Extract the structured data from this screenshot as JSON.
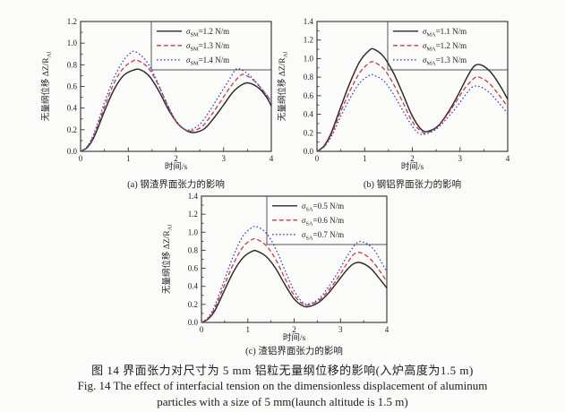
{
  "figure": {
    "caption_cn": "图 14  界面张力对尺寸为 5 mm 铝粒无量纲位移的影响(入炉高度为1.5 m)",
    "caption_en_1": "Fig. 14  The effect of interfacial tension on the dimensionless displacement of aluminum",
    "caption_en_2": "particles with a size of 5 mm(launch altitude is 1.5 m)"
  },
  "style": {
    "background": "#fbfbf9",
    "axis_color": "#2e2e2e",
    "text_color": "#1f1f1f",
    "series_colors": [
      "#2a2a2a",
      "#c43b4e",
      "#3c49c0"
    ],
    "line_styles": [
      "solid",
      "dashed",
      "dotted"
    ]
  },
  "chart_data": [
    {
      "type": "line",
      "subcaption": "(a) 钢渣界面张力的影响",
      "xlabel": "时间/s",
      "ylabel": "无量纲位移 ΔZ/R",
      "ylabel_sub": "Al",
      "xlim": [
        0,
        4
      ],
      "ylim": [
        0,
        1.2
      ],
      "xticks": [
        "0",
        "1",
        "2",
        "3",
        "4"
      ],
      "yticks": [
        "0.0",
        "0.2",
        "0.4",
        "0.6",
        "0.8",
        "1.0",
        "1.2"
      ],
      "legend_position": "top-right",
      "grid": false,
      "series": [
        {
          "name": "σSM=1.2 N/m",
          "sigma_sub": "SM",
          "value_text": "=1.2 N/m",
          "line_style": "solid",
          "points": [
            [
              0,
              0
            ],
            [
              0.15,
              0.04
            ],
            [
              0.3,
              0.15
            ],
            [
              0.5,
              0.37
            ],
            [
              0.7,
              0.57
            ],
            [
              0.9,
              0.7
            ],
            [
              1.1,
              0.75
            ],
            [
              1.25,
              0.755
            ],
            [
              1.45,
              0.69
            ],
            [
              1.65,
              0.55
            ],
            [
              1.85,
              0.38
            ],
            [
              2.05,
              0.25
            ],
            [
              2.25,
              0.185
            ],
            [
              2.4,
              0.175
            ],
            [
              2.6,
              0.21
            ],
            [
              2.8,
              0.31
            ],
            [
              3.0,
              0.43
            ],
            [
              3.2,
              0.55
            ],
            [
              3.4,
              0.62
            ],
            [
              3.55,
              0.63
            ],
            [
              3.75,
              0.58
            ],
            [
              3.9,
              0.5
            ],
            [
              4,
              0.42
            ]
          ]
        },
        {
          "name": "σSM=1.3 N/m",
          "sigma_sub": "SM",
          "value_text": "=1.3 N/m",
          "line_style": "dashed",
          "points": [
            [
              0,
              0
            ],
            [
              0.15,
              0.05
            ],
            [
              0.3,
              0.17
            ],
            [
              0.5,
              0.41
            ],
            [
              0.7,
              0.63
            ],
            [
              0.9,
              0.77
            ],
            [
              1.1,
              0.835
            ],
            [
              1.2,
              0.84
            ],
            [
              1.4,
              0.78
            ],
            [
              1.6,
              0.64
            ],
            [
              1.8,
              0.45
            ],
            [
              2.0,
              0.28
            ],
            [
              2.2,
              0.2
            ],
            [
              2.35,
              0.19
            ],
            [
              2.55,
              0.23
            ],
            [
              2.75,
              0.34
            ],
            [
              2.95,
              0.47
            ],
            [
              3.15,
              0.6
            ],
            [
              3.35,
              0.7
            ],
            [
              3.45,
              0.705
            ],
            [
              3.65,
              0.65
            ],
            [
              3.85,
              0.55
            ],
            [
              4,
              0.46
            ]
          ]
        },
        {
          "name": "σSM=1.4 N/m",
          "sigma_sub": "SM",
          "value_text": "=1.4 N/m",
          "line_style": "dotted",
          "points": [
            [
              0,
              0
            ],
            [
              0.15,
              0.05
            ],
            [
              0.3,
              0.19
            ],
            [
              0.5,
              0.45
            ],
            [
              0.7,
              0.68
            ],
            [
              0.9,
              0.84
            ],
            [
              1.05,
              0.91
            ],
            [
              1.15,
              0.92
            ],
            [
              1.35,
              0.85
            ],
            [
              1.55,
              0.7
            ],
            [
              1.75,
              0.5
            ],
            [
              1.95,
              0.32
            ],
            [
              2.15,
              0.21
            ],
            [
              2.3,
              0.2
            ],
            [
              2.5,
              0.25
            ],
            [
              2.7,
              0.37
            ],
            [
              2.9,
              0.51
            ],
            [
              3.1,
              0.65
            ],
            [
              3.25,
              0.755
            ],
            [
              3.35,
              0.76
            ],
            [
              3.55,
              0.7
            ],
            [
              3.75,
              0.6
            ],
            [
              3.9,
              0.52
            ],
            [
              4,
              0.46
            ]
          ]
        }
      ]
    },
    {
      "type": "line",
      "subcaption": "(b) 钢铝界面张力的影响",
      "xlabel": "时间/s",
      "ylabel": "无量纲位移 ΔZ/R",
      "ylabel_sub": "Al",
      "xlim": [
        0,
        4
      ],
      "ylim": [
        0,
        1.4
      ],
      "xticks": [
        "0",
        "1",
        "2",
        "3",
        "4"
      ],
      "yticks": [
        "0.0",
        "0.2",
        "0.4",
        "0.6",
        "0.8",
        "1.0",
        "1.2",
        "1.4"
      ],
      "legend_position": "top-right",
      "grid": false,
      "series": [
        {
          "name": "σMA=1.1 N/m",
          "sigma_sub": "MA",
          "value_text": "=1.1 N/m",
          "line_style": "solid",
          "points": [
            [
              0,
              0
            ],
            [
              0.15,
              0.06
            ],
            [
              0.3,
              0.2
            ],
            [
              0.5,
              0.48
            ],
            [
              0.7,
              0.75
            ],
            [
              0.9,
              0.97
            ],
            [
              1.1,
              1.09
            ],
            [
              1.2,
              1.1
            ],
            [
              1.4,
              1.02
            ],
            [
              1.6,
              0.85
            ],
            [
              1.8,
              0.62
            ],
            [
              2.0,
              0.38
            ],
            [
              2.2,
              0.23
            ],
            [
              2.35,
              0.22
            ],
            [
              2.55,
              0.28
            ],
            [
              2.75,
              0.42
            ],
            [
              2.95,
              0.6
            ],
            [
              3.15,
              0.8
            ],
            [
              3.3,
              0.92
            ],
            [
              3.45,
              0.93
            ],
            [
              3.65,
              0.85
            ],
            [
              3.85,
              0.7
            ],
            [
              4,
              0.56
            ]
          ]
        },
        {
          "name": "σMA=1.2 N/m",
          "sigma_sub": "MA",
          "value_text": "=1.2 N/m",
          "line_style": "dashed",
          "points": [
            [
              0,
              0
            ],
            [
              0.15,
              0.05
            ],
            [
              0.3,
              0.18
            ],
            [
              0.5,
              0.43
            ],
            [
              0.7,
              0.66
            ],
            [
              0.9,
              0.85
            ],
            [
              1.1,
              0.955
            ],
            [
              1.2,
              0.96
            ],
            [
              1.4,
              0.89
            ],
            [
              1.6,
              0.73
            ],
            [
              1.8,
              0.53
            ],
            [
              2.0,
              0.32
            ],
            [
              2.2,
              0.21
            ],
            [
              2.3,
              0.2
            ],
            [
              2.5,
              0.25
            ],
            [
              2.7,
              0.37
            ],
            [
              2.9,
              0.52
            ],
            [
              3.1,
              0.68
            ],
            [
              3.3,
              0.79
            ],
            [
              3.4,
              0.8
            ],
            [
              3.6,
              0.74
            ],
            [
              3.8,
              0.62
            ],
            [
              4,
              0.48
            ]
          ]
        },
        {
          "name": "σMA=1.3 N/m",
          "sigma_sub": "MA",
          "value_text": "=1.3 N/m",
          "line_style": "dotted",
          "points": [
            [
              0,
              0
            ],
            [
              0.15,
              0.05
            ],
            [
              0.3,
              0.16
            ],
            [
              0.5,
              0.38
            ],
            [
              0.7,
              0.58
            ],
            [
              0.9,
              0.74
            ],
            [
              1.1,
              0.82
            ],
            [
              1.2,
              0.82
            ],
            [
              1.4,
              0.76
            ],
            [
              1.6,
              0.62
            ],
            [
              1.8,
              0.44
            ],
            [
              2.0,
              0.27
            ],
            [
              2.15,
              0.19
            ],
            [
              2.3,
              0.19
            ],
            [
              2.5,
              0.24
            ],
            [
              2.7,
              0.34
            ],
            [
              2.9,
              0.46
            ],
            [
              3.1,
              0.6
            ],
            [
              3.25,
              0.69
            ],
            [
              3.4,
              0.7
            ],
            [
              3.6,
              0.64
            ],
            [
              3.8,
              0.53
            ],
            [
              4,
              0.41
            ]
          ]
        }
      ]
    },
    {
      "type": "line",
      "subcaption": "(c) 渣铝界面张力的影响",
      "xlabel": "时间/s",
      "ylabel": "无量纲位移 ΔZ/R",
      "ylabel_sub": "Al",
      "xlim": [
        0,
        4
      ],
      "ylim": [
        0,
        1.4
      ],
      "xticks": [
        "0",
        "1",
        "2",
        "3",
        "4"
      ],
      "yticks": [
        "0.0",
        "0.2",
        "0.4",
        "0.6",
        "0.8",
        "1.0",
        "1.2",
        "1.4"
      ],
      "legend_position": "top-right",
      "grid": false,
      "series": [
        {
          "name": "σSA=0.5 N/m",
          "sigma_sub": "SA",
          "value_text": "=0.5 N/m",
          "line_style": "solid",
          "points": [
            [
              0,
              0
            ],
            [
              0.15,
              0.04
            ],
            [
              0.3,
              0.14
            ],
            [
              0.5,
              0.36
            ],
            [
              0.7,
              0.57
            ],
            [
              0.9,
              0.72
            ],
            [
              1.1,
              0.79
            ],
            [
              1.2,
              0.79
            ],
            [
              1.4,
              0.73
            ],
            [
              1.6,
              0.6
            ],
            [
              1.8,
              0.42
            ],
            [
              2.0,
              0.26
            ],
            [
              2.2,
              0.18
            ],
            [
              2.35,
              0.18
            ],
            [
              2.55,
              0.23
            ],
            [
              2.75,
              0.33
            ],
            [
              2.95,
              0.46
            ],
            [
              3.15,
              0.59
            ],
            [
              3.3,
              0.655
            ],
            [
              3.45,
              0.66
            ],
            [
              3.65,
              0.6
            ],
            [
              3.85,
              0.48
            ],
            [
              4,
              0.38
            ]
          ]
        },
        {
          "name": "σSA=0.6 N/m",
          "sigma_sub": "SA",
          "value_text": "=0.6 N/m",
          "line_style": "dashed",
          "points": [
            [
              0,
              0
            ],
            [
              0.15,
              0.05
            ],
            [
              0.3,
              0.17
            ],
            [
              0.5,
              0.42
            ],
            [
              0.7,
              0.66
            ],
            [
              0.9,
              0.84
            ],
            [
              1.1,
              0.92
            ],
            [
              1.2,
              0.92
            ],
            [
              1.4,
              0.85
            ],
            [
              1.6,
              0.7
            ],
            [
              1.8,
              0.49
            ],
            [
              2.0,
              0.3
            ],
            [
              2.2,
              0.2
            ],
            [
              2.35,
              0.2
            ],
            [
              2.55,
              0.25
            ],
            [
              2.75,
              0.36
            ],
            [
              2.95,
              0.5
            ],
            [
              3.15,
              0.66
            ],
            [
              3.3,
              0.76
            ],
            [
              3.45,
              0.77
            ],
            [
              3.65,
              0.7
            ],
            [
              3.85,
              0.57
            ],
            [
              4,
              0.45
            ]
          ]
        },
        {
          "name": "σSA=0.7 N/m",
          "sigma_sub": "SA",
          "value_text": "=0.7 N/m",
          "line_style": "dotted",
          "points": [
            [
              0,
              0
            ],
            [
              0.15,
              0.06
            ],
            [
              0.3,
              0.2
            ],
            [
              0.5,
              0.48
            ],
            [
              0.7,
              0.75
            ],
            [
              0.9,
              0.96
            ],
            [
              1.1,
              1.055
            ],
            [
              1.2,
              1.06
            ],
            [
              1.4,
              0.99
            ],
            [
              1.6,
              0.82
            ],
            [
              1.8,
              0.58
            ],
            [
              2.0,
              0.35
            ],
            [
              2.2,
              0.215
            ],
            [
              2.35,
              0.21
            ],
            [
              2.55,
              0.27
            ],
            [
              2.75,
              0.4
            ],
            [
              2.95,
              0.56
            ],
            [
              3.15,
              0.74
            ],
            [
              3.35,
              0.88
            ],
            [
              3.5,
              0.89
            ],
            [
              3.7,
              0.82
            ],
            [
              3.85,
              0.7
            ],
            [
              4,
              0.56
            ]
          ]
        }
      ]
    }
  ]
}
